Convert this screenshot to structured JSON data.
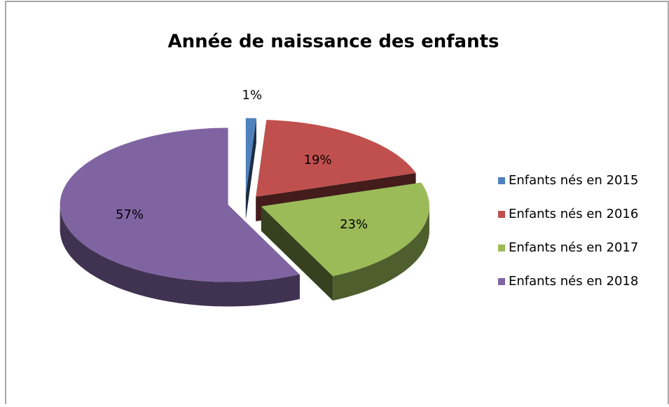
{
  "chart_data": {
    "type": "pie",
    "title": "Année de naissance des enfants",
    "categories": [
      "Enfants nés en 2015",
      "Enfants nés en 2016",
      "Enfants nés en 2017",
      "Enfants nés en 2018"
    ],
    "values": [
      1,
      19,
      23,
      57
    ],
    "value_labels": [
      "1%",
      "19%",
      "23%",
      "57%"
    ],
    "colors": [
      "#4f81bd",
      "#c0504d",
      "#9bbb59",
      "#8064a2"
    ],
    "legend": "right"
  }
}
